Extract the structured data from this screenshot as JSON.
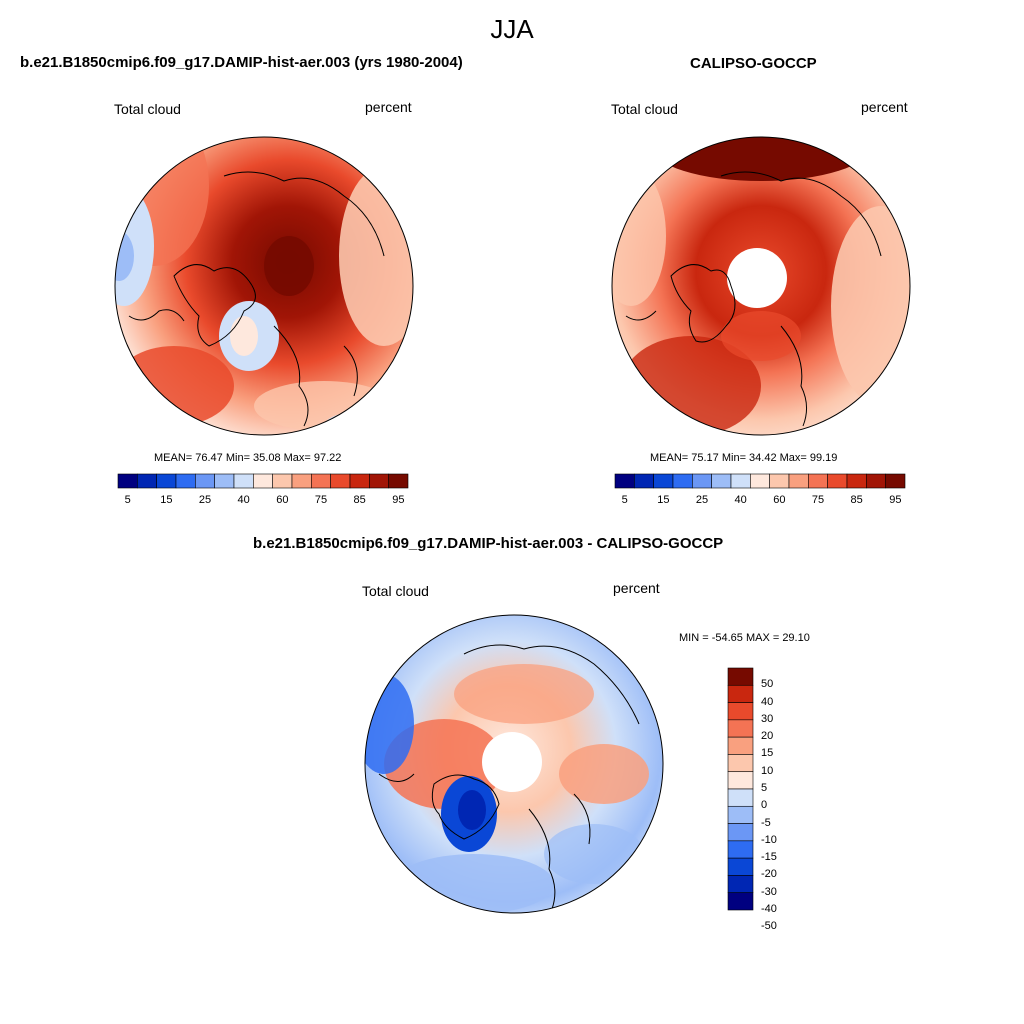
{
  "season": "JJA",
  "panels": [
    {
      "title": "b.e21.B1850cmip6.f09_g17.DAMIP-hist-aer.003 (yrs 1980-2004)",
      "left_label": "Total cloud",
      "right_label": "percent",
      "stats_text": "MEAN=  76.47  Min=  35.08  Max=  97.22",
      "has_pole_hole": false
    },
    {
      "title": "CALIPSO-GOCCP",
      "left_label": "Total cloud",
      "right_label": "percent",
      "stats_text": "MEAN=  75.17  Min=  34.42  Max=  99.19",
      "has_pole_hole": true
    }
  ],
  "abs_colorbar": {
    "colors": [
      "#000080",
      "#0026b3",
      "#0a47d6",
      "#2e6cf2",
      "#6b97f5",
      "#9dbdf7",
      "#cfe0f9",
      "#fee8dd",
      "#fcc7ad",
      "#f9a07f",
      "#f47354",
      "#e94a2c",
      "#c9270f",
      "#a11506",
      "#760a00"
    ],
    "tick_labels": [
      "5",
      "15",
      "25",
      "40",
      "60",
      "75",
      "85",
      "95"
    ]
  },
  "diff_panel": {
    "title": "b.e21.B1850cmip6.f09_g17.DAMIP-hist-aer.003 - CALIPSO-GOCCP",
    "left_label": "Total cloud",
    "right_label": "percent",
    "stats_text": "MIN = -54.65 MAX =  29.10"
  },
  "diff_colorbar": {
    "colors": [
      "#000080",
      "#0026b3",
      "#0a47d6",
      "#2e6cf2",
      "#6b97f5",
      "#9dbdf7",
      "#cfe0f9",
      "#fee8dd",
      "#fcc7ad",
      "#f9a07f",
      "#f47354",
      "#e94a2c",
      "#c9270f",
      "#760a00"
    ],
    "tick_labels": [
      "50",
      "40",
      "30",
      "20",
      "15",
      "10",
      "5",
      "0",
      "-5",
      "-10",
      "-15",
      "-20",
      "-30",
      "-40",
      "-50"
    ]
  }
}
